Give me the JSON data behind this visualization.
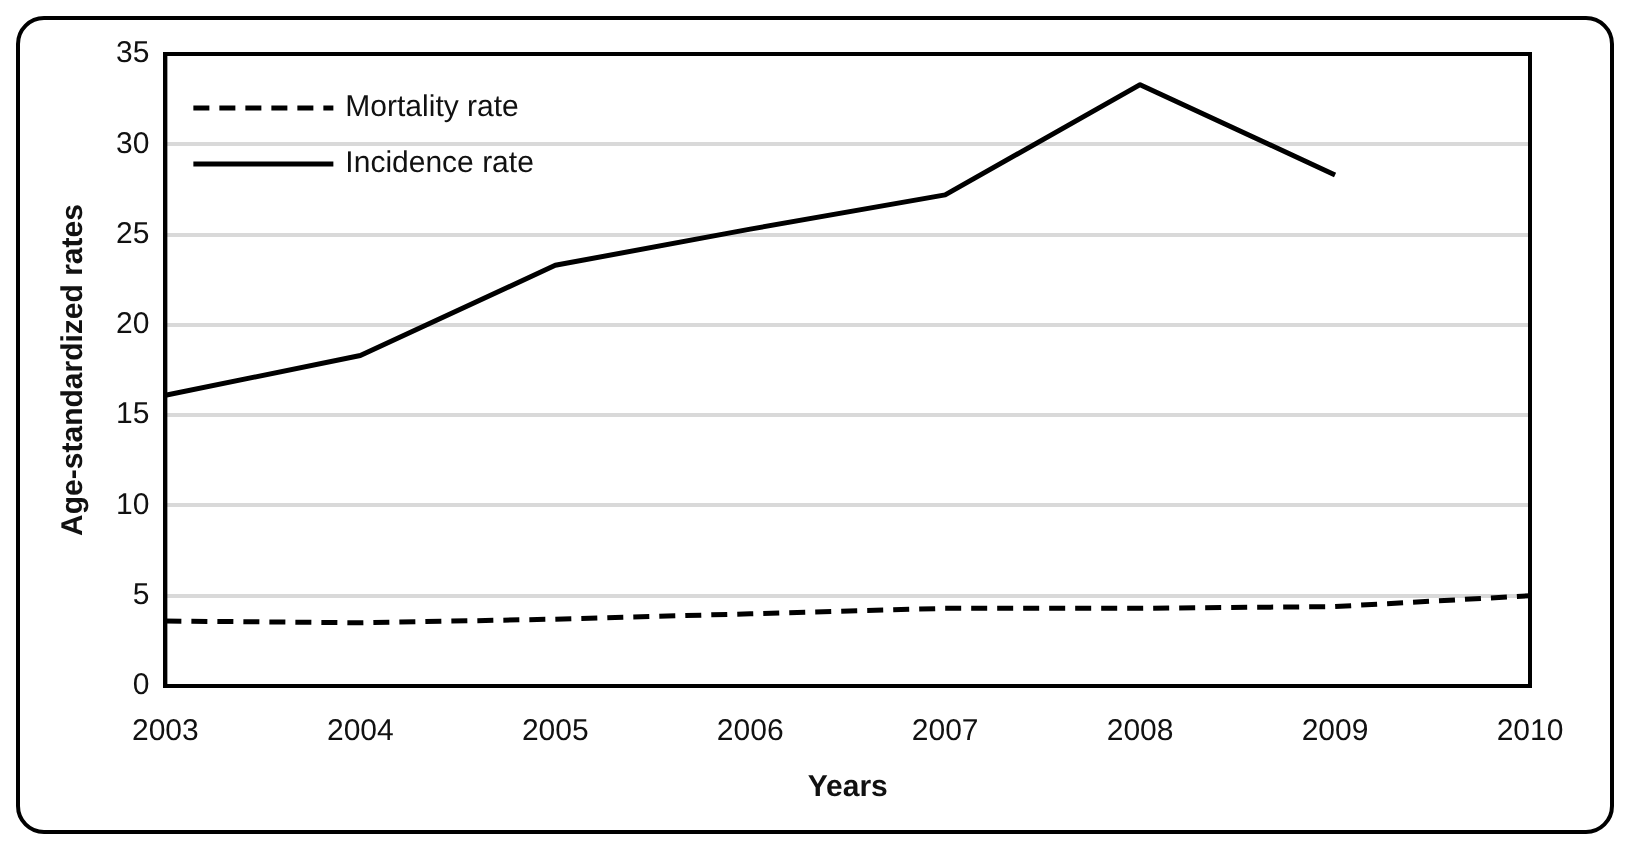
{
  "chart_data": {
    "type": "line",
    "xlabel": "Years",
    "ylabel": "Age-standardized rates",
    "xlim": [
      2003,
      2010
    ],
    "xticks": [
      2003,
      2004,
      2005,
      2006,
      2007,
      2008,
      2009,
      2010
    ],
    "ylim": [
      0,
      35
    ],
    "yticks": [
      0,
      5,
      10,
      15,
      20,
      25,
      30,
      35
    ],
    "grid": "y",
    "legend": "top left",
    "marker": "none",
    "series": [
      {
        "name": "Mortality rate",
        "color": "#000000",
        "line_style": "dashed",
        "x": [
          2003,
          2004,
          2005,
          2006,
          2007,
          2008,
          2009,
          2010
        ],
        "values": [
          3.6,
          3.5,
          3.7,
          4.0,
          4.3,
          4.3,
          4.4,
          5.0
        ]
      },
      {
        "name": "Incidence rate",
        "color": "#000000",
        "line_style": "solid",
        "x": [
          2003,
          2004,
          2005,
          2006,
          2007,
          2008,
          2009
        ],
        "values": [
          16.1,
          18.3,
          23.3,
          25.3,
          27.2,
          33.3,
          28.3
        ]
      }
    ]
  }
}
